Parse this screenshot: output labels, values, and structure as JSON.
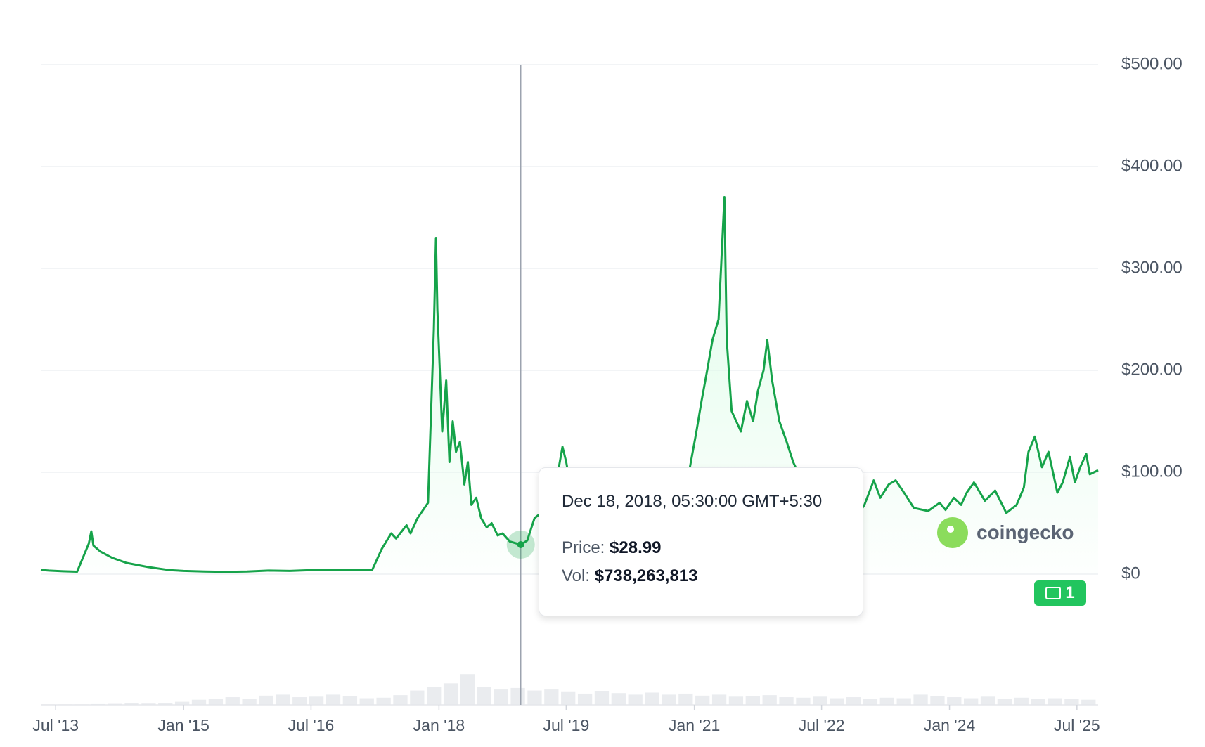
{
  "chart_data": {
    "type": "area",
    "ylim": [
      0,
      500
    ],
    "y_ticks": [
      "$500.00",
      "$400.00",
      "$300.00",
      "$200.00",
      "$100.00",
      "$0"
    ],
    "y_tick_values": [
      500,
      400,
      300,
      200,
      100,
      0
    ],
    "x_ticks": [
      "Jul '13",
      "Jan '15",
      "Jul '16",
      "Jan '18",
      "Jul '19",
      "Jan '21",
      "Jul '22",
      "Jan '24",
      "Jul '25"
    ],
    "x_tick_dates": [
      "2013-07-01",
      "2015-01-01",
      "2016-07-01",
      "2018-01-01",
      "2019-07-01",
      "2021-01-01",
      "2022-07-01",
      "2024-01-01",
      "2025-07-01"
    ],
    "xlim": [
      "2013-04-28",
      "2025-09-30"
    ],
    "grid": true,
    "line_color": "#16a34a",
    "fill_color": "#dcfce7",
    "series": [
      {
        "dates": [
          "2013-04-28",
          "2013-06-01",
          "2013-08-01",
          "2013-10-01",
          "2013-11-20",
          "2013-12-01",
          "2013-12-10",
          "2014-01-10",
          "2014-03-01",
          "2014-05-01",
          "2014-08-01",
          "2014-11-01",
          "2015-01-01",
          "2015-04-01",
          "2015-07-01",
          "2015-10-01",
          "2016-01-01",
          "2016-04-01",
          "2016-07-01",
          "2016-10-01",
          "2017-01-01",
          "2017-03-20",
          "2017-05-01",
          "2017-06-10",
          "2017-07-01",
          "2017-08-15",
          "2017-09-01",
          "2017-10-01",
          "2017-11-15",
          "2017-12-10",
          "2017-12-19",
          "2017-12-25",
          "2018-01-01",
          "2018-01-15",
          "2018-02-01",
          "2018-02-15",
          "2018-03-01",
          "2018-03-15",
          "2018-04-01",
          "2018-04-20",
          "2018-05-05",
          "2018-05-20",
          "2018-06-10",
          "2018-07-01",
          "2018-07-25",
          "2018-08-15",
          "2018-09-10",
          "2018-10-01",
          "2018-11-01",
          "2018-12-18",
          "2019-01-15",
          "2019-02-15",
          "2019-03-15",
          "2019-04-15",
          "2019-05-15",
          "2019-06-15",
          "2019-07-01",
          "2019-08-01",
          "2019-09-01",
          "2019-10-01",
          "2019-11-01",
          "2019-12-01",
          "2020-01-01",
          "2020-02-15",
          "2020-03-15",
          "2020-05-01",
          "2020-07-01",
          "2020-09-01",
          "2020-11-01",
          "2020-12-01",
          "2021-01-10",
          "2021-02-01",
          "2021-02-25",
          "2021-03-20",
          "2021-04-15",
          "2021-05-10",
          "2021-05-20",
          "2021-06-10",
          "2021-07-20",
          "2021-08-15",
          "2021-09-10",
          "2021-10-01",
          "2021-10-25",
          "2021-11-10",
          "2021-12-01",
          "2022-01-01",
          "2022-02-01",
          "2022-03-01",
          "2022-04-01",
          "2022-05-15",
          "2022-06-20",
          "2022-08-01",
          "2022-09-01",
          "2022-10-01",
          "2022-11-15",
          "2023-01-01",
          "2023-02-10",
          "2023-03-10",
          "2023-04-15",
          "2023-05-15",
          "2023-06-20",
          "2023-08-01",
          "2023-10-01",
          "2023-11-20",
          "2023-12-15",
          "2024-01-20",
          "2024-02-20",
          "2024-03-15",
          "2024-04-15",
          "2024-06-01",
          "2024-07-15",
          "2024-09-01",
          "2024-10-15",
          "2024-11-15",
          "2024-12-05",
          "2025-01-01",
          "2025-02-01",
          "2025-03-01",
          "2025-04-08",
          "2025-05-01",
          "2025-06-01",
          "2025-06-22",
          "2025-07-15",
          "2025-08-10",
          "2025-08-25",
          "2025-09-30"
        ],
        "values": [
          4.2,
          3.5,
          2.8,
          2.4,
          30,
          42,
          28,
          22,
          16,
          11,
          7,
          4,
          3.2,
          2.6,
          2.2,
          2.6,
          3.5,
          3.2,
          4,
          3.8,
          3.9,
          4,
          25,
          40,
          35,
          48,
          40,
          55,
          70,
          240,
          330,
          260,
          220,
          140,
          190,
          110,
          150,
          120,
          130,
          88,
          110,
          68,
          75,
          55,
          46,
          50,
          38,
          40,
          32,
          29,
          33,
          55,
          60,
          70,
          85,
          125,
          110,
          70,
          60,
          55,
          58,
          45,
          42,
          50,
          38,
          45,
          42,
          48,
          70,
          90,
          140,
          170,
          200,
          230,
          250,
          370,
          230,
          160,
          140,
          170,
          150,
          180,
          200,
          230,
          190,
          150,
          130,
          110,
          95,
          70,
          48,
          55,
          55,
          48,
          52,
          68,
          92,
          75,
          88,
          92,
          80,
          65,
          62,
          70,
          63,
          75,
          68,
          80,
          90,
          72,
          82,
          60,
          68,
          85,
          120,
          135,
          105,
          120,
          80,
          90,
          115,
          90,
          105,
          118,
          98,
          102
        ]
      }
    ],
    "volume_values": [
      0.01,
      0.01,
      0.01,
      0.015,
      0.02,
      0.03,
      0.025,
      0.03,
      0.06,
      0.1,
      0.12,
      0.15,
      0.12,
      0.18,
      0.2,
      0.15,
      0.16,
      0.2,
      0.17,
      0.13,
      0.14,
      0.19,
      0.28,
      0.35,
      0.42,
      0.6,
      0.35,
      0.3,
      0.33,
      0.28,
      0.3,
      0.25,
      0.22,
      0.27,
      0.23,
      0.2,
      0.24,
      0.2,
      0.22,
      0.18,
      0.2,
      0.16,
      0.17,
      0.19,
      0.15,
      0.14,
      0.16,
      0.13,
      0.15,
      0.12,
      0.14,
      0.13,
      0.2,
      0.17,
      0.15,
      0.13,
      0.16,
      0.12,
      0.14,
      0.11,
      0.13,
      0.12,
      0.1
    ],
    "hover_date": "2018-12-18"
  },
  "tooltip": {
    "date": "Dec 18, 2018, 05:30:00 GMT+5:30",
    "price_label": "Price:",
    "price_value": "$28.99",
    "vol_label": "Vol:",
    "vol_value": "$738,263,813"
  },
  "watermark": {
    "text": "coingecko"
  },
  "news_badge": {
    "count": "1"
  }
}
